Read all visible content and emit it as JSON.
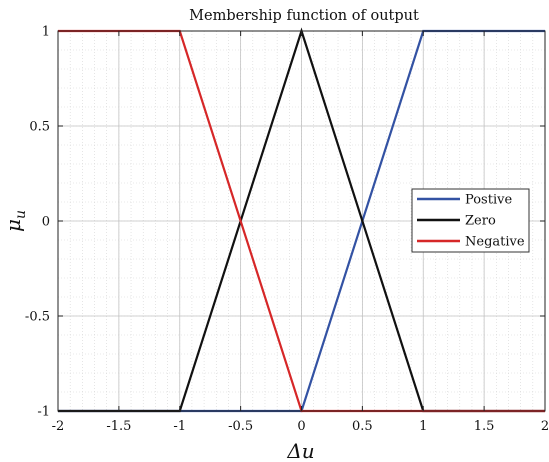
{
  "chart_data": {
    "type": "line",
    "title": "Membership function of output",
    "xlabel": "Δu",
    "ylabel_main": "μ",
    "ylabel_sub": "u",
    "xlim": [
      -2,
      2
    ],
    "ylim": [
      -1,
      1
    ],
    "xticks": [
      -2,
      -1.5,
      -1,
      -0.5,
      0,
      0.5,
      1,
      1.5,
      2
    ],
    "xtick_labels": [
      "-2",
      "-1.5",
      "-1",
      "-0.5",
      "0",
      "0.5",
      "1",
      "1.5",
      "2"
    ],
    "yticks": [
      -1,
      -0.5,
      0,
      0.5,
      1
    ],
    "ytick_labels": [
      "-1",
      "-0.5",
      "0",
      "0.5",
      "1"
    ],
    "grid": true,
    "minor_grid": true,
    "legend_position": "right",
    "series": [
      {
        "name": "Postive",
        "color": "#3352a3",
        "x": [
          -2,
          0,
          1,
          2
        ],
        "y": [
          -1,
          -1,
          1,
          1
        ]
      },
      {
        "name": "Zero",
        "color": "#111111",
        "x": [
          -2,
          -1,
          0,
          1,
          2
        ],
        "y": [
          -1,
          -1,
          1,
          -1,
          -1
        ]
      },
      {
        "name": "Negative",
        "color": "#d62728",
        "x": [
          -2,
          -1,
          0,
          2
        ],
        "y": [
          1,
          1,
          -1,
          -1
        ]
      }
    ]
  }
}
